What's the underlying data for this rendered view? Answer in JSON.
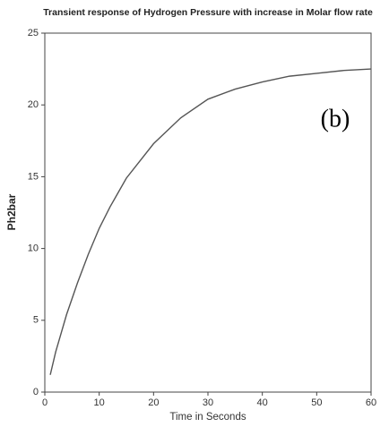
{
  "chart_data": {
    "type": "line",
    "title": "Transient response of Hydrogen Pressure with increase in Molar flow rate",
    "x_label": "Time in Seconds",
    "y_label": "Ph2bar",
    "annotation": "(b)",
    "x": [
      1,
      2,
      4,
      6,
      8,
      10,
      12,
      15,
      20,
      25,
      30,
      35,
      40,
      45,
      50,
      55,
      60
    ],
    "series": [
      {
        "name": "Ph2bar",
        "color": "#555555",
        "values": [
          1.2,
          2.8,
          5.4,
          7.6,
          9.6,
          11.4,
          12.9,
          14.9,
          17.3,
          19.1,
          20.4,
          21.1,
          21.6,
          22.0,
          22.2,
          22.4,
          22.5
        ]
      }
    ],
    "xlim": [
      0,
      60
    ],
    "xticks": [
      0,
      10,
      20,
      30,
      40,
      50,
      60
    ],
    "ylim": [
      0,
      25
    ],
    "yticks": [
      0,
      5,
      10,
      15,
      20,
      25
    ]
  }
}
